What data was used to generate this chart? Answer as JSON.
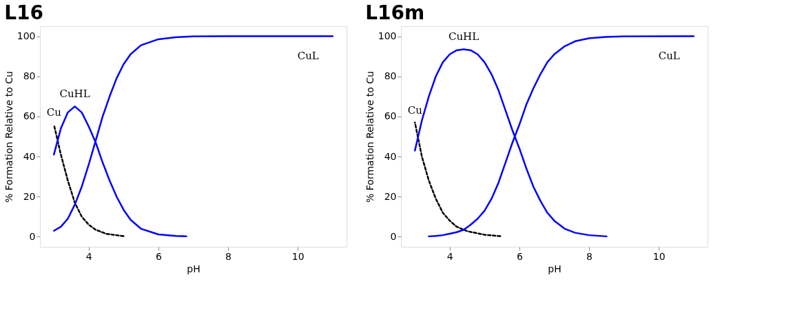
{
  "chart_data": [
    {
      "type": "line",
      "title": "L16",
      "xlabel": "pH",
      "ylabel": "% Formation Relative to Cu",
      "xlim": [
        2.6,
        11.4
      ],
      "ylim": [
        -5,
        105
      ],
      "xticks": [
        4,
        6,
        8,
        10
      ],
      "yticks": [
        0,
        20,
        40,
        60,
        80,
        100
      ],
      "grid": false,
      "legend": false,
      "marker": "none",
      "series": [
        {
          "name": "Cu",
          "color": "#000000",
          "line_style": "dashed",
          "x": [
            3,
            3.2,
            3.4,
            3.6,
            3.8,
            4.0,
            4.2,
            4.5,
            5.0
          ],
          "values": [
            56,
            41,
            28,
            17,
            10,
            6,
            3.5,
            1.5,
            0.3
          ]
        },
        {
          "name": "CuHL",
          "color": "#0000ff",
          "line_style": "solid",
          "x": [
            3,
            3.2,
            3.4,
            3.6,
            3.8,
            4.0,
            4.2,
            4.4,
            4.6,
            4.8,
            5.0,
            5.2,
            5.5,
            6.0,
            6.5,
            6.8
          ],
          "values": [
            41,
            54,
            62,
            65,
            62,
            55,
            47,
            37,
            28,
            20,
            13.5,
            8.5,
            4,
            1.2,
            0.4,
            0.2
          ]
        },
        {
          "name": "CuL",
          "color": "#0000ff",
          "line_style": "solid",
          "x": [
            3,
            3.2,
            3.4,
            3.6,
            3.8,
            4.0,
            4.2,
            4.4,
            4.6,
            4.8,
            5.0,
            5.2,
            5.5,
            6.0,
            6.5,
            7.0,
            8.0,
            11.0
          ],
          "values": [
            3,
            5,
            9,
            16,
            25,
            36,
            48,
            60,
            70,
            79,
            86,
            91,
            95.5,
            98.5,
            99.5,
            99.9,
            100,
            100
          ]
        }
      ]
    },
    {
      "type": "line",
      "title": "L16m",
      "xlabel": "pH",
      "ylabel": "% Formation Relative to Cu",
      "xlim": [
        2.6,
        11.4
      ],
      "ylim": [
        -5,
        105
      ],
      "xticks": [
        4,
        6,
        8,
        10
      ],
      "yticks": [
        0,
        20,
        40,
        60,
        80,
        100
      ],
      "grid": false,
      "legend": false,
      "marker": "none",
      "series": [
        {
          "name": "Cu",
          "color": "#000000",
          "line_style": "dashed",
          "x": [
            3,
            3.2,
            3.4,
            3.6,
            3.8,
            4.0,
            4.2,
            4.5,
            5.0,
            5.45
          ],
          "values": [
            57,
            40,
            28,
            19,
            12,
            8,
            5,
            2.8,
            1,
            0.3
          ]
        },
        {
          "name": "CuHL",
          "color": "#0000ff",
          "line_style": "solid",
          "x": [
            3,
            3.2,
            3.4,
            3.6,
            3.8,
            4.0,
            4.2,
            4.4,
            4.6,
            4.8,
            5.0,
            5.2,
            5.4,
            5.6,
            5.8,
            6.0,
            6.2,
            6.4,
            6.6,
            6.8,
            7.0,
            7.3,
            7.6,
            8.0,
            8.5
          ],
          "values": [
            43,
            58,
            70,
            80,
            87,
            91,
            93,
            93.5,
            93,
            91,
            87,
            81,
            73,
            63,
            53,
            44,
            34,
            25,
            18,
            12,
            8,
            4,
            2,
            0.8,
            0.2
          ]
        },
        {
          "name": "CuL",
          "color": "#0000ff",
          "line_style": "solid",
          "x": [
            3.4,
            3.6,
            3.8,
            4.0,
            4.2,
            4.4,
            4.6,
            4.8,
            5.0,
            5.2,
            5.4,
            5.6,
            5.8,
            6.0,
            6.2,
            6.4,
            6.6,
            6.8,
            7.0,
            7.3,
            7.6,
            8.0,
            8.5,
            9.0,
            11.0
          ],
          "values": [
            0.2,
            0.4,
            0.8,
            1.5,
            2.3,
            3.5,
            6,
            9,
            13,
            19,
            27,
            37,
            47,
            56,
            66,
            74,
            81,
            87,
            91,
            95,
            97.5,
            99,
            99.7,
            99.9,
            100
          ]
        }
      ]
    }
  ]
}
